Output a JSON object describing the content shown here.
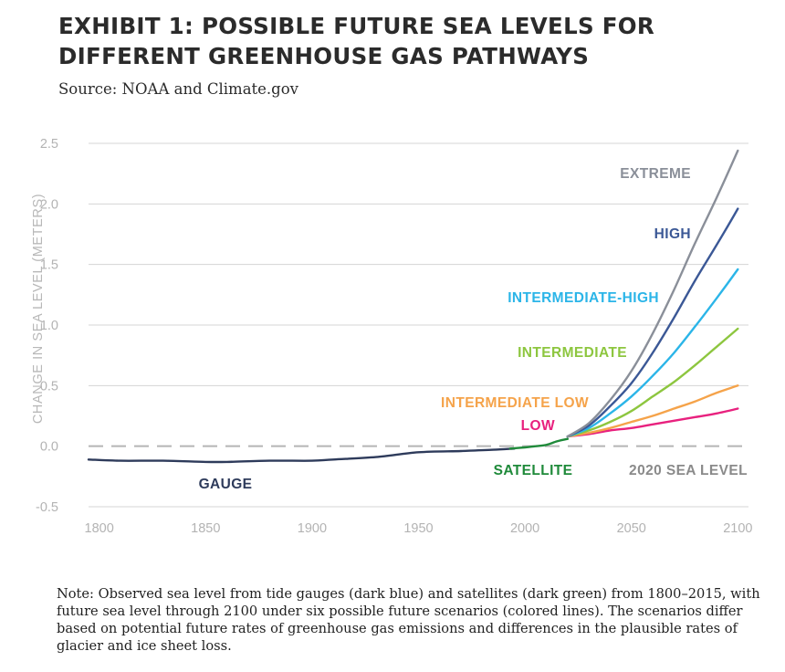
{
  "header": {
    "title": "EXHIBIT 1: POSSIBLE FUTURE SEA LEVELS FOR DIFFERENT GREENHOUSE GAS PATHWAYS",
    "subtitle": "Source: NOAA and Climate.gov"
  },
  "note": "Note: Observed sea level from tide gauges (dark blue) and satellites (dark green) from 1800–2015, with future sea level through 2100 under six possible future scenarios (colored lines). The scenarios differ based on potential future rates of greenhouse gas emissions and differences in the plausible rates of glacier and ice sheet loss.",
  "chart_data": {
    "type": "line",
    "title": "EXHIBIT 1: POSSIBLE FUTURE SEA LEVELS FOR DIFFERENT GREENHOUSE GAS PATHWAYS",
    "ylabel": "CHANGE IN SEA LEVEL (METERS)",
    "xlabel": "",
    "xlim": [
      1795,
      2105
    ],
    "ylim": [
      -0.5,
      2.5
    ],
    "x_ticks": [
      "1800",
      "1850",
      "1900",
      "1950",
      "2000",
      "2050",
      "2100"
    ],
    "y_ticks": [
      "2.5",
      "2.0",
      "1.5",
      "1.0",
      "0.5",
      "0.0",
      "-0.5"
    ],
    "grid": "horizontal",
    "reference_line": {
      "label": "2020 SEA LEVEL",
      "y": 0.0,
      "color": "#b5b5b5"
    },
    "series": [
      {
        "name": "GAUGE",
        "color": "#2e3b5b",
        "x": [
          1795,
          1810,
          1830,
          1850,
          1860,
          1880,
          1900,
          1910,
          1930,
          1950,
          1970,
          1985,
          1995
        ],
        "y": [
          -0.11,
          -0.12,
          -0.12,
          -0.13,
          -0.13,
          -0.12,
          -0.12,
          -0.11,
          -0.09,
          -0.05,
          -0.04,
          -0.03,
          -0.02
        ]
      },
      {
        "name": "SATELLITE",
        "color": "#1f8a3a",
        "x": [
          1993,
          2000,
          2005,
          2010,
          2015,
          2020
        ],
        "y": [
          -0.02,
          -0.01,
          0.0,
          0.01,
          0.04,
          0.06
        ]
      },
      {
        "name": "LOW",
        "color": "#e8217e",
        "x": [
          2020,
          2030,
          2040,
          2050,
          2060,
          2070,
          2080,
          2090,
          2100
        ],
        "y": [
          0.08,
          0.1,
          0.13,
          0.15,
          0.18,
          0.21,
          0.24,
          0.27,
          0.31
        ]
      },
      {
        "name": "INTERMEDIATE LOW",
        "color": "#f5a34a",
        "x": [
          2020,
          2030,
          2040,
          2050,
          2060,
          2070,
          2080,
          2090,
          2100
        ],
        "y": [
          0.08,
          0.11,
          0.15,
          0.2,
          0.25,
          0.31,
          0.37,
          0.44,
          0.5
        ]
      },
      {
        "name": "INTERMEDIATE",
        "color": "#8dc63f",
        "x": [
          2020,
          2030,
          2040,
          2050,
          2060,
          2070,
          2080,
          2090,
          2100
        ],
        "y": [
          0.08,
          0.13,
          0.2,
          0.29,
          0.41,
          0.53,
          0.67,
          0.82,
          0.97
        ]
      },
      {
        "name": "INTERMEDIATE-HIGH",
        "color": "#2bb5e8",
        "x": [
          2020,
          2030,
          2040,
          2050,
          2060,
          2070,
          2080,
          2090,
          2100
        ],
        "y": [
          0.08,
          0.15,
          0.27,
          0.41,
          0.58,
          0.77,
          0.99,
          1.22,
          1.46
        ]
      },
      {
        "name": "HIGH",
        "color": "#3b5896",
        "x": [
          2020,
          2030,
          2040,
          2050,
          2060,
          2070,
          2080,
          2090,
          2100
        ],
        "y": [
          0.08,
          0.17,
          0.33,
          0.52,
          0.77,
          1.06,
          1.37,
          1.66,
          1.96
        ]
      },
      {
        "name": "EXTREME",
        "color": "#8a8f99",
        "x": [
          2020,
          2030,
          2040,
          2050,
          2060,
          2070,
          2080,
          2090,
          2100
        ],
        "y": [
          0.08,
          0.19,
          0.38,
          0.62,
          0.93,
          1.29,
          1.68,
          2.05,
          2.44
        ]
      }
    ]
  }
}
